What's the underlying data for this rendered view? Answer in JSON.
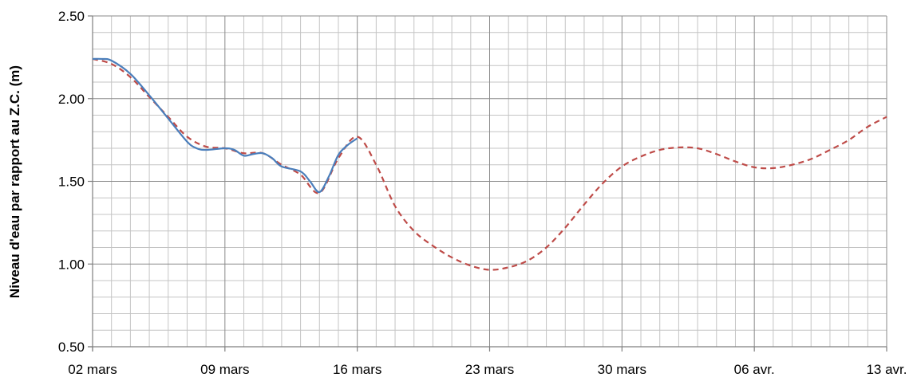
{
  "chart_data": {
    "type": "line",
    "xlabel": "",
    "ylabel": "Niveau d'eau par rapport au Z.C. (m)",
    "ylim": [
      0.5,
      2.5
    ],
    "xlim": [
      "2024-03-02",
      "2024-04-13"
    ],
    "y_ticks": [
      "0.50",
      "1.00",
      "1.50",
      "2.00",
      "2.50"
    ],
    "x_ticks": [
      "02 mars",
      "09 mars",
      "16 mars",
      "23 mars",
      "30 mars",
      "06 avr.",
      "13 avr."
    ],
    "grid": true,
    "legend": "none",
    "series": [
      {
        "color": "#4a7ebb",
        "style": "solid",
        "points": [
          [
            "2024-03-02",
            2.24
          ],
          [
            "2024-03-02T12:00",
            2.24
          ],
          [
            "2024-03-03",
            2.23
          ],
          [
            "2024-03-04",
            2.15
          ],
          [
            "2024-03-05",
            2.02
          ],
          [
            "2024-03-06",
            1.88
          ],
          [
            "2024-03-07",
            1.74
          ],
          [
            "2024-03-07T12:00",
            1.7
          ],
          [
            "2024-03-08",
            1.69
          ],
          [
            "2024-03-09",
            1.7
          ],
          [
            "2024-03-09T12:00",
            1.69
          ],
          [
            "2024-03-10",
            1.655
          ],
          [
            "2024-03-10T12:00",
            1.665
          ],
          [
            "2024-03-11",
            1.67
          ],
          [
            "2024-03-11T12:00",
            1.64
          ],
          [
            "2024-03-12",
            1.59
          ],
          [
            "2024-03-13",
            1.56
          ],
          [
            "2024-03-13T12:00",
            1.5
          ],
          [
            "2024-03-14",
            1.435
          ],
          [
            "2024-03-14T12:00",
            1.53
          ],
          [
            "2024-03-15",
            1.66
          ],
          [
            "2024-03-15T12:00",
            1.72
          ],
          [
            "2024-03-16",
            1.76
          ]
        ]
      },
      {
        "color": "#be4b48",
        "style": "dashed",
        "points": [
          [
            "2024-03-02",
            2.24
          ],
          [
            "2024-03-03",
            2.21
          ],
          [
            "2024-03-04",
            2.13
          ],
          [
            "2024-03-05",
            2.01
          ],
          [
            "2024-03-06",
            1.89
          ],
          [
            "2024-03-07",
            1.77
          ],
          [
            "2024-03-08",
            1.71
          ],
          [
            "2024-03-09",
            1.7
          ],
          [
            "2024-03-10",
            1.67
          ],
          [
            "2024-03-11",
            1.67
          ],
          [
            "2024-03-12",
            1.6
          ],
          [
            "2024-03-13",
            1.54
          ],
          [
            "2024-03-14",
            1.43
          ],
          [
            "2024-03-15",
            1.64
          ],
          [
            "2024-03-16",
            1.77
          ],
          [
            "2024-03-17",
            1.6
          ],
          [
            "2024-03-18",
            1.35
          ],
          [
            "2024-03-19",
            1.2
          ],
          [
            "2024-03-20",
            1.11
          ],
          [
            "2024-03-21",
            1.04
          ],
          [
            "2024-03-22",
            0.99
          ],
          [
            "2024-03-23",
            0.965
          ],
          [
            "2024-03-24",
            0.98
          ],
          [
            "2024-03-25",
            1.02
          ],
          [
            "2024-03-26",
            1.1
          ],
          [
            "2024-03-27",
            1.22
          ],
          [
            "2024-03-28",
            1.36
          ],
          [
            "2024-03-29",
            1.49
          ],
          [
            "2024-03-30",
            1.59
          ],
          [
            "2024-03-31",
            1.65
          ],
          [
            "2024-04-01",
            1.69
          ],
          [
            "2024-04-02",
            1.705
          ],
          [
            "2024-04-03",
            1.7
          ],
          [
            "2024-04-04",
            1.665
          ],
          [
            "2024-04-05",
            1.62
          ],
          [
            "2024-04-06",
            1.585
          ],
          [
            "2024-04-07",
            1.58
          ],
          [
            "2024-04-08",
            1.6
          ],
          [
            "2024-04-09",
            1.635
          ],
          [
            "2024-04-10",
            1.69
          ],
          [
            "2024-04-11",
            1.75
          ],
          [
            "2024-04-12",
            1.83
          ],
          [
            "2024-04-13",
            1.89
          ]
        ]
      }
    ]
  }
}
